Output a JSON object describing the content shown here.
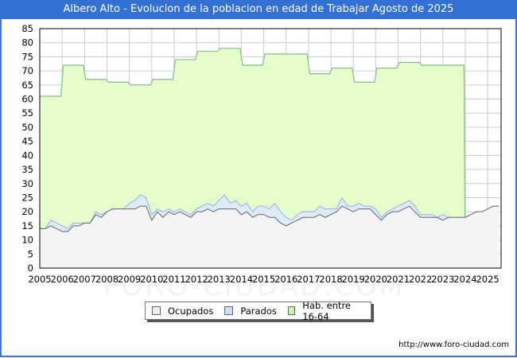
{
  "title": "Albero Alto - Evolucion de la poblacion en edad de Trabajar Agosto de 2025",
  "footer": "http://www.foro-ciudad.com",
  "watermark": "FORO-CIUDAD.COM",
  "legend": [
    {
      "label": "Ocupados",
      "color": "#eeeeee"
    },
    {
      "label": "Parados",
      "color": "#cce0f8"
    },
    {
      "label": "Hab. entre 16-64",
      "color": "#ccf5a0"
    }
  ],
  "colors": {
    "title_bg": "#3370d4",
    "hab_fill": "#e6fccb",
    "hab_line": "#7fbf8f",
    "parados_fill": "#ddebfb",
    "parados_line": "#8fb4e6",
    "ocupados_fill": "#f4f4f4",
    "ocupados_line": "#666666",
    "grid": "#cccccc"
  },
  "chart_data": {
    "type": "area",
    "title": "Albero Alto - Evolucion de la poblacion en edad de Trabajar Agosto de 2025",
    "xlabel": "",
    "ylabel": "",
    "ylim": [
      0,
      85
    ],
    "xlim": [
      2005,
      2025.6
    ],
    "yticks": [
      0,
      5,
      10,
      15,
      20,
      25,
      30,
      35,
      40,
      45,
      50,
      55,
      60,
      65,
      70,
      75,
      80,
      85
    ],
    "xticks": [
      2005,
      2006,
      2007,
      2008,
      2009,
      2010,
      2011,
      2012,
      2013,
      2014,
      2015,
      2016,
      2017,
      2018,
      2019,
      2020,
      2021,
      2022,
      2023,
      2024,
      2025
    ],
    "grid": true,
    "legend_position": "bottom",
    "series": [
      {
        "name": "Hab. entre 16-64",
        "step": "yearly",
        "x": [
          2005,
          2006,
          2007,
          2008,
          2009,
          2010,
          2011,
          2012,
          2013,
          2014,
          2015,
          2016,
          2017,
          2018,
          2019,
          2020,
          2021,
          2022,
          2023
        ],
        "values": [
          61,
          72,
          67,
          66,
          65,
          67,
          74,
          77,
          78,
          72,
          76,
          76,
          69,
          71,
          66,
          71,
          73,
          72,
          72
        ],
        "end_x": 2024
      },
      {
        "name": "Parados",
        "x": [
          2005,
          2005.25,
          2005.5,
          2005.75,
          2006,
          2006.25,
          2006.5,
          2006.75,
          2007,
          2007.25,
          2007.5,
          2007.75,
          2008,
          2008.25,
          2008.5,
          2008.75,
          2009,
          2009.25,
          2009.5,
          2009.75,
          2010,
          2010.25,
          2010.5,
          2010.75,
          2011,
          2011.25,
          2011.5,
          2011.75,
          2012,
          2012.25,
          2012.5,
          2012.75,
          2013,
          2013.25,
          2013.5,
          2013.75,
          2014,
          2014.25,
          2014.5,
          2014.75,
          2015,
          2015.25,
          2015.5,
          2015.75,
          2016,
          2016.25,
          2016.5,
          2016.75,
          2017,
          2017.25,
          2017.5,
          2017.75,
          2018,
          2018.25,
          2018.5,
          2018.75,
          2019,
          2019.25,
          2019.5,
          2019.75,
          2020,
          2020.25,
          2020.5,
          2020.75,
          2021,
          2021.25,
          2021.5,
          2021.75,
          2022,
          2022.25,
          2022.5,
          2022.75,
          2023,
          2023.25,
          2023.5,
          2023.75,
          2024,
          2024.25,
          2024.5,
          2024.75,
          2025,
          2025.25,
          2025.5
        ],
        "values": [
          14,
          14,
          17,
          16,
          15,
          14,
          16,
          16,
          16,
          16,
          20,
          19,
          20,
          21,
          21,
          21,
          23,
          24,
          26,
          25,
          19,
          21,
          20,
          21,
          20,
          21,
          20,
          19,
          21,
          22,
          23,
          22,
          24,
          26,
          23,
          24,
          22,
          23,
          20,
          22,
          22,
          21,
          23,
          20,
          18,
          17,
          19,
          20,
          20,
          20,
          22,
          21,
          21,
          21,
          25,
          22,
          22,
          23,
          22,
          22,
          21,
          18,
          20,
          21,
          22,
          23,
          24,
          22,
          19,
          19,
          19,
          18,
          19,
          18,
          18,
          18,
          18,
          19,
          20,
          20,
          21,
          22,
          22
        ]
      },
      {
        "name": "Ocupados",
        "x": [
          2005,
          2005.25,
          2005.5,
          2005.75,
          2006,
          2006.25,
          2006.5,
          2006.75,
          2007,
          2007.25,
          2007.5,
          2007.75,
          2008,
          2008.25,
          2008.5,
          2008.75,
          2009,
          2009.25,
          2009.5,
          2009.75,
          2010,
          2010.25,
          2010.5,
          2010.75,
          2011,
          2011.25,
          2011.5,
          2011.75,
          2012,
          2012.25,
          2012.5,
          2012.75,
          2013,
          2013.25,
          2013.5,
          2013.75,
          2014,
          2014.25,
          2014.5,
          2014.75,
          2015,
          2015.25,
          2015.5,
          2015.75,
          2016,
          2016.25,
          2016.5,
          2016.75,
          2017,
          2017.25,
          2017.5,
          2017.75,
          2018,
          2018.25,
          2018.5,
          2018.75,
          2019,
          2019.25,
          2019.5,
          2019.75,
          2020,
          2020.25,
          2020.5,
          2020.75,
          2021,
          2021.25,
          2021.5,
          2021.75,
          2022,
          2022.25,
          2022.5,
          2022.75,
          2023,
          2023.25,
          2023.5,
          2023.75,
          2024,
          2024.25,
          2024.5,
          2024.75,
          2025,
          2025.25,
          2025.5
        ],
        "values": [
          14,
          14,
          15,
          14,
          13,
          13,
          15,
          15,
          16,
          16,
          19,
          18,
          20,
          21,
          21,
          21,
          21,
          21,
          22,
          22,
          17,
          20,
          18,
          20,
          19,
          20,
          19,
          18,
          20,
          20,
          21,
          20,
          21,
          21,
          21,
          21,
          19,
          20,
          18,
          19,
          19,
          18,
          18,
          16,
          15,
          16,
          17,
          18,
          18,
          18,
          19,
          18,
          19,
          20,
          22,
          21,
          20,
          21,
          21,
          21,
          19,
          17,
          19,
          20,
          20,
          21,
          22,
          20,
          18,
          18,
          18,
          18,
          17,
          18,
          18,
          18,
          18,
          19,
          20,
          20,
          21,
          22,
          22
        ]
      }
    ]
  }
}
